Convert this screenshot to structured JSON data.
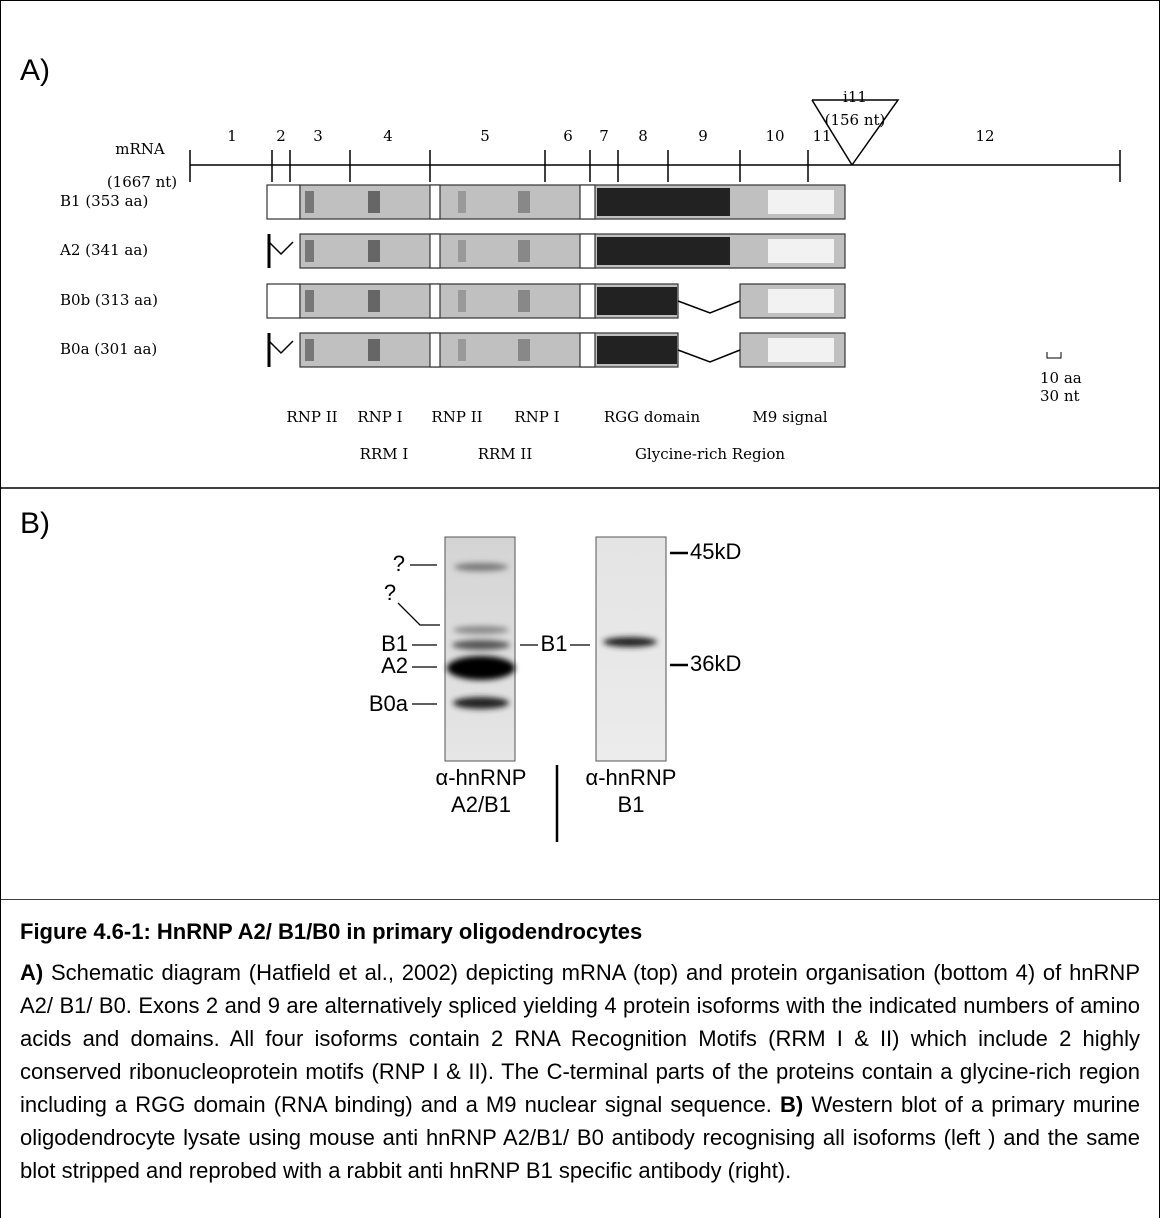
{
  "panel_a": {
    "label": "A)",
    "mrna_label": "mRNA",
    "mrna_length": "(1667 nt)",
    "intron": "i11",
    "intron_length": "(156 nt)",
    "exons": [
      "1",
      "2",
      "3",
      "4",
      "5",
      "6",
      "7",
      "8",
      "9",
      "10",
      "11",
      "12"
    ],
    "isoforms": [
      "B1 (353 aa)",
      "A2 (341 aa)",
      "B0b (313 aa)",
      "B0a (301 aa)"
    ],
    "domain_labels": [
      "RNP II",
      "RNP I",
      "RNP II",
      "RNP I",
      "RGG domain",
      "M9 signal"
    ],
    "region_labels": [
      "RRM I",
      "RRM II",
      "Glycine-rich Region"
    ],
    "scale": [
      "10 aa",
      "30 nt"
    ]
  },
  "panel_b": {
    "label": "B)",
    "left_markers": [
      "?",
      "?",
      "B1",
      "A2",
      "B0a"
    ],
    "middle_marker": "B1",
    "size_markers": [
      "45kD",
      "36kD"
    ],
    "lanes": [
      [
        "α-hnRNP",
        "A2/B1"
      ],
      [
        "α-hnRNP",
        "B1"
      ]
    ]
  },
  "caption": {
    "title": "Figure 4.6-1: HnRNP A2/ B1/B0 in primary oligodendrocytes",
    "label_a": "A)",
    "text_a": " Schematic diagram (Hatfield et al., 2002) depicting mRNA (top) and protein organisation (bottom 4) of hnRNP A2/ B1/ B0. Exons 2 and 9 are alternatively spliced yielding 4 protein isoforms with the indicated numbers of amino acids and domains. All four isoforms contain 2 RNA Recognition Motifs (RRM I & II) which include 2 highly conserved ribonucleoprotein motifs (RNP I & II). The C-terminal parts of the proteins contain a glycine-rich region including a RGG domain (RNA binding) and a M9 nuclear signal sequence.",
    "label_b": "B)",
    "text_b": " Western blot of a primary murine oligodendrocyte lysate using mouse anti hnRNP A2/B1/ B0 antibody recognising all isoforms (left ) and the same blot stripped and reprobed with a rabbit anti hnRNP B1 specific antibody (right)."
  }
}
